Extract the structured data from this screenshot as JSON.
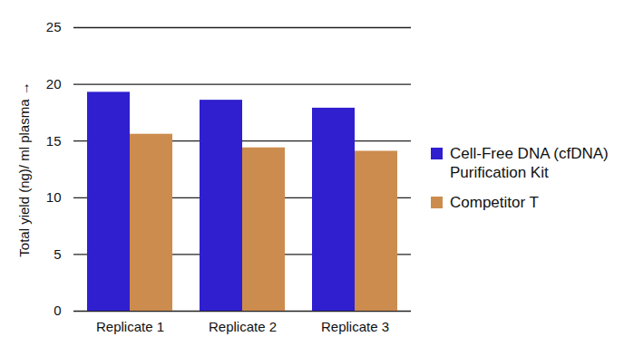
{
  "chart_data": {
    "type": "bar",
    "categories": [
      "Replicate 1",
      "Replicate 2",
      "Replicate 3"
    ],
    "series": [
      {
        "name": "Cell-Free DNA (cfDNA) Purification Kit",
        "color": "#2f1fcf",
        "values": [
          19.3,
          18.6,
          17.9
        ]
      },
      {
        "name": "Competitor T",
        "color": "#cc8c4e",
        "values": [
          15.6,
          14.4,
          14.1
        ]
      }
    ],
    "y_label": "Total yield (ng)/ ml plasma",
    "ylim": [
      0,
      25
    ],
    "yticks": [
      0,
      5,
      10,
      15,
      20,
      25
    ],
    "grid": true,
    "legend": "right"
  }
}
